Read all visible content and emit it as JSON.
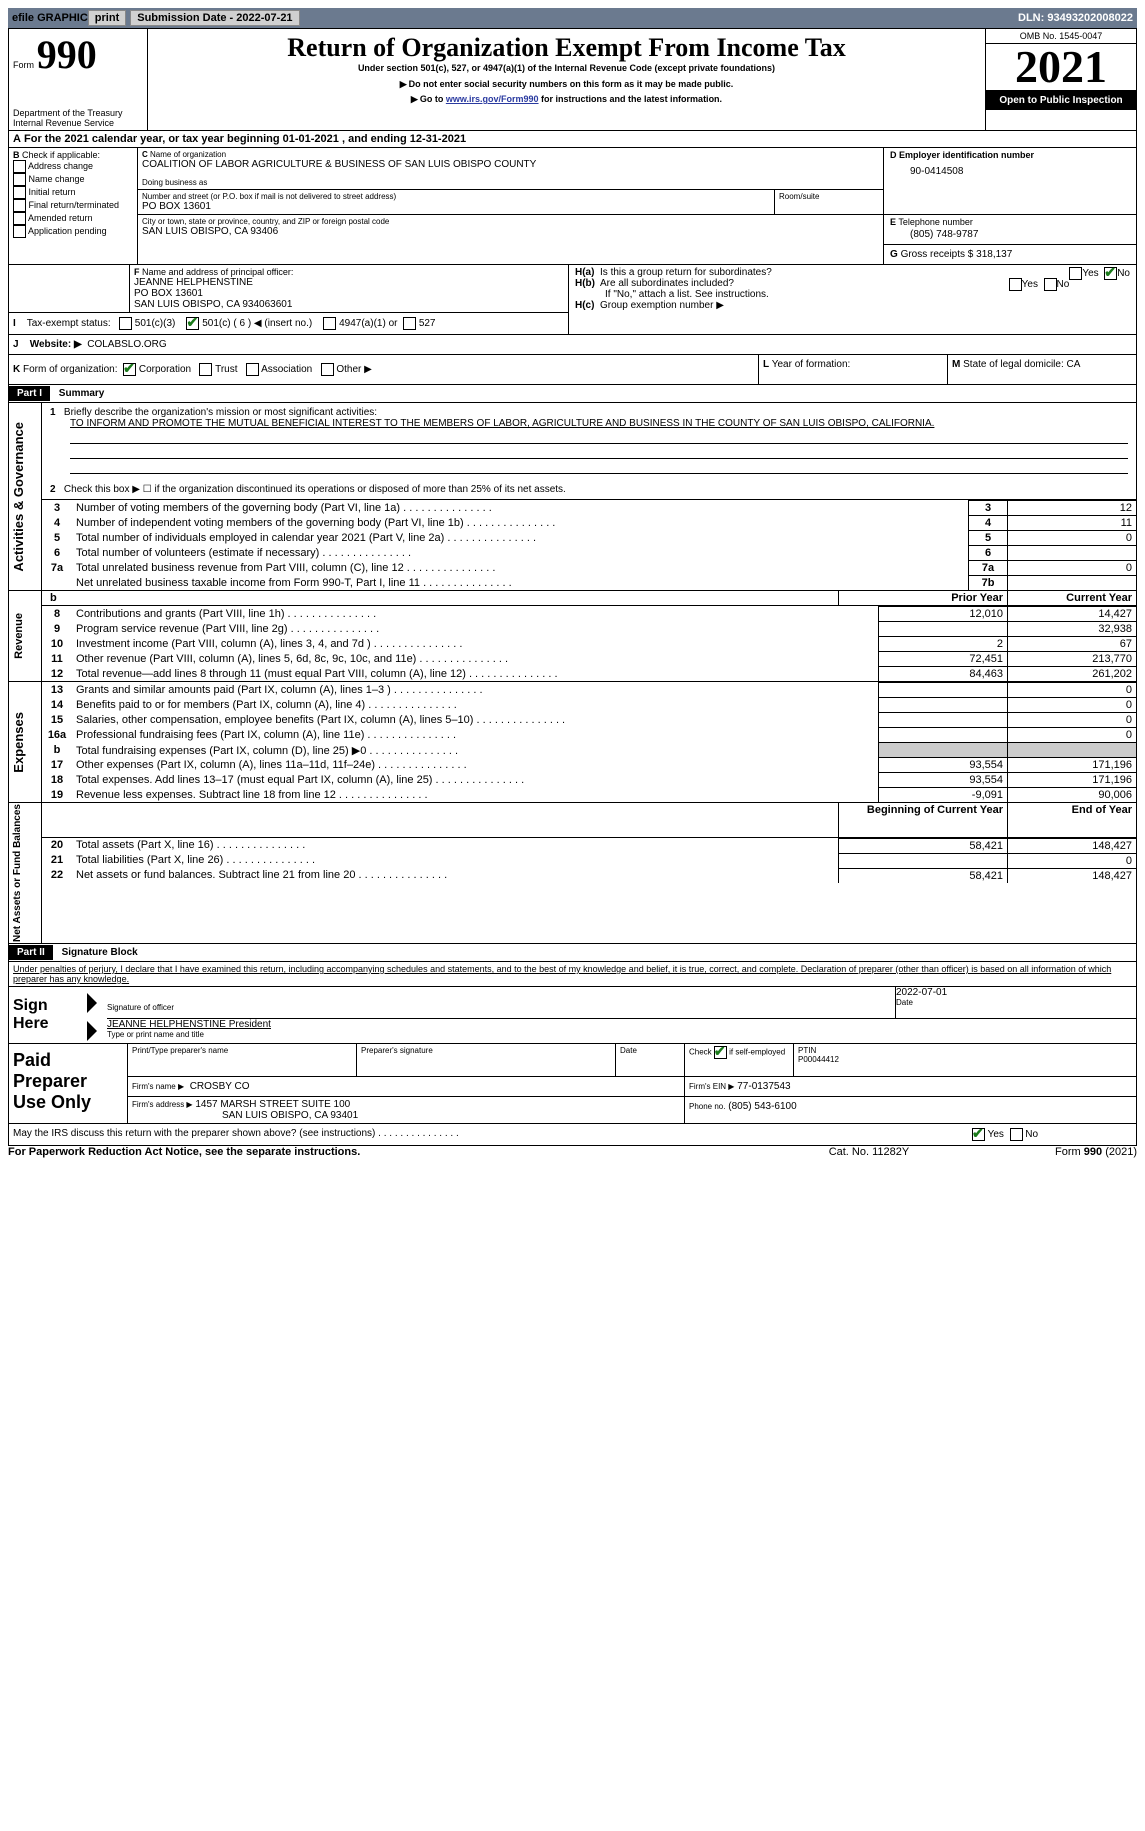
{
  "topbar": {
    "efile": "efile GRAPHIC",
    "print": "print",
    "subdate_lbl": "Submission Date - ",
    "subdate": "2022-07-21",
    "dln_lbl": "DLN: ",
    "dln": "93493202008022"
  },
  "header": {
    "form_word": "Form",
    "form_no": "990",
    "title": "Return of Organization Exempt From Income Tax",
    "subtitle": "Under section 501(c), 527, or 4947(a)(1) of the Internal Revenue Code (except private foundations)",
    "note1": "Do not enter social security numbers on this form as it may be made public.",
    "note2_pre": "Go to ",
    "note2_link": "www.irs.gov/Form990",
    "note2_post": " for instructions and the latest information.",
    "omb": "OMB No. 1545-0047",
    "year": "2021",
    "open_pub": "Open to Public Inspection",
    "dept": "Department of the Treasury",
    "irs": "Internal Revenue Service"
  },
  "a": {
    "line": "For the 2021 calendar year, or tax year beginning ",
    "begin": "01-01-2021",
    "mid": " , and ending ",
    "end": "12-31-2021"
  },
  "b": {
    "lbl": "Check if applicable:",
    "opts": [
      "Address change",
      "Name change",
      "Initial return",
      "Final return/terminated",
      "Amended return",
      "Application pending"
    ]
  },
  "c": {
    "lbl": "Name of organization",
    "name": "COALITION OF LABOR AGRICULTURE & BUSINESS OF SAN LUIS OBISPO COUNTY",
    "dba_lbl": "Doing business as",
    "addr_lbl": "Number and street (or P.O. box if mail is not delivered to street address)",
    "room_lbl": "Room/suite",
    "addr": "PO BOX 13601",
    "city_lbl": "City or town, state or province, country, and ZIP or foreign postal code",
    "city": "SAN LUIS OBISPO, CA  93406"
  },
  "d": {
    "lbl": "Employer identification number",
    "val": "90-0414508"
  },
  "e": {
    "lbl": "Telephone number",
    "val": "(805) 748-9787"
  },
  "g": {
    "lbl": "Gross receipts $",
    "val": "318,137"
  },
  "f": {
    "lbl": "Name and address of principal officer:",
    "name": "JEANNE HELPHENSTINE",
    "addr1": "PO BOX 13601",
    "addr2": "SAN LUIS OBISPO, CA  934063601"
  },
  "h": {
    "a_lbl": "Is this a group return for subordinates?",
    "a_yes": "Yes",
    "a_no": "No",
    "b_lbl": "Are all subordinates included?",
    "b_note": "If \"No,\" attach a list. See instructions.",
    "c_lbl": "Group exemption number ▶"
  },
  "i": {
    "lbl": "Tax-exempt status:",
    "o1": "501(c)(3)",
    "o2": "501(c) ( 6 ) ◀ (insert no.)",
    "o3": "4947(a)(1) or",
    "o4": "527"
  },
  "j": {
    "lbl": "Website: ▶",
    "val": "COLABSLO.ORG"
  },
  "k": {
    "lbl": "Form of organization:",
    "o1": "Corporation",
    "o2": "Trust",
    "o3": "Association",
    "o4": "Other ▶"
  },
  "l": {
    "lbl": "Year of formation:"
  },
  "m": {
    "lbl": "State of legal domicile:",
    "val": "CA"
  },
  "part1": {
    "hdr": "Part I",
    "title": "Summary"
  },
  "s1": {
    "lbl": "Briefly describe the organization's mission or most significant activities:",
    "txt": "TO INFORM AND PROMOTE THE MUTUAL BENEFICIAL INTEREST TO THE MEMBERS OF LABOR, AGRICULTURE AND BUSINESS IN THE COUNTY OF SAN LUIS OBISPO, CALIFORNIA."
  },
  "s2": "Check this box ▶ ☐ if the organization discontinued its operations or disposed of more than 25% of its net assets.",
  "rows_ag": [
    {
      "n": "3",
      "t": "Number of voting members of the governing body (Part VI, line 1a)",
      "l": "3",
      "v": "12"
    },
    {
      "n": "4",
      "t": "Number of independent voting members of the governing body (Part VI, line 1b)",
      "l": "4",
      "v": "11"
    },
    {
      "n": "5",
      "t": "Total number of individuals employed in calendar year 2021 (Part V, line 2a)",
      "l": "5",
      "v": "0"
    },
    {
      "n": "6",
      "t": "Total number of volunteers (estimate if necessary)",
      "l": "6",
      "v": ""
    },
    {
      "n": "7a",
      "t": "Total unrelated business revenue from Part VIII, column (C), line 12",
      "l": "7a",
      "v": "0"
    },
    {
      "n": "",
      "t": "Net unrelated business taxable income from Form 990-T, Part I, line 11",
      "l": "7b",
      "v": ""
    }
  ],
  "py_hdr": "Prior Year",
  "cy_hdr": "Current Year",
  "rows_rev": [
    {
      "n": "8",
      "t": "Contributions and grants (Part VIII, line 1h)",
      "py": "12,010",
      "cy": "14,427"
    },
    {
      "n": "9",
      "t": "Program service revenue (Part VIII, line 2g)",
      "py": "",
      "cy": "32,938"
    },
    {
      "n": "10",
      "t": "Investment income (Part VIII, column (A), lines 3, 4, and 7d )",
      "py": "2",
      "cy": "67"
    },
    {
      "n": "11",
      "t": "Other revenue (Part VIII, column (A), lines 5, 6d, 8c, 9c, 10c, and 11e)",
      "py": "72,451",
      "cy": "213,770"
    },
    {
      "n": "12",
      "t": "Total revenue—add lines 8 through 11 (must equal Part VIII, column (A), line 12)",
      "py": "84,463",
      "cy": "261,202"
    }
  ],
  "rows_exp": [
    {
      "n": "13",
      "t": "Grants and similar amounts paid (Part IX, column (A), lines 1–3 )",
      "py": "",
      "cy": "0"
    },
    {
      "n": "14",
      "t": "Benefits paid to or for members (Part IX, column (A), line 4)",
      "py": "",
      "cy": "0"
    },
    {
      "n": "15",
      "t": "Salaries, other compensation, employee benefits (Part IX, column (A), lines 5–10)",
      "py": "",
      "cy": "0"
    },
    {
      "n": "16a",
      "t": "Professional fundraising fees (Part IX, column (A), line 11e)",
      "py": "",
      "cy": "0"
    },
    {
      "n": "b",
      "t": "Total fundraising expenses (Part IX, column (D), line 25) ▶0",
      "py": "shade",
      "cy": "shade"
    },
    {
      "n": "17",
      "t": "Other expenses (Part IX, column (A), lines 11a–11d, 11f–24e)",
      "py": "93,554",
      "cy": "171,196"
    },
    {
      "n": "18",
      "t": "Total expenses. Add lines 13–17 (must equal Part IX, column (A), line 25)",
      "py": "93,554",
      "cy": "171,196"
    },
    {
      "n": "19",
      "t": "Revenue less expenses. Subtract line 18 from line 12",
      "py": "-9,091",
      "cy": "90,006"
    }
  ],
  "boy_hdr": "Beginning of Current Year",
  "eoy_hdr": "End of Year",
  "rows_na": [
    {
      "n": "20",
      "t": "Total assets (Part X, line 16)",
      "b": "58,421",
      "e": "148,427"
    },
    {
      "n": "21",
      "t": "Total liabilities (Part X, line 26)",
      "b": "",
      "e": "0"
    },
    {
      "n": "22",
      "t": "Net assets or fund balances. Subtract line 21 from line 20",
      "b": "58,421",
      "e": "148,427"
    }
  ],
  "part2": {
    "hdr": "Part II",
    "title": "Signature Block"
  },
  "penalty": "Under penalties of perjury, I declare that I have examined this return, including accompanying schedules and statements, and to the best of my knowledge and belief, it is true, correct, and complete. Declaration of preparer (other than officer) is based on all information of which preparer has any knowledge.",
  "sign": {
    "here": "Sign Here",
    "sig_lbl": "Signature of officer",
    "date_lbl": "Date",
    "date": "2022-07-01",
    "name": "JEANNE HELPHENSTINE  President",
    "name_lbl": "Type or print name and title"
  },
  "paid": {
    "hdr": "Paid Preparer Use Only",
    "c1": "Print/Type preparer's name",
    "c2": "Preparer's signature",
    "c3": "Date",
    "c4a": "Check",
    "c4b": "if self-employed",
    "c5": "PTIN",
    "ptin": "P00044412",
    "firm_lbl": "Firm's name   ▶",
    "firm": "CROSBY CO",
    "ein_lbl": "Firm's EIN ▶",
    "ein": "77-0137543",
    "addr_lbl": "Firm's address ▶",
    "addr1": "1457 MARSH STREET SUITE 100",
    "addr2": "SAN LUIS OBISPO, CA  93401",
    "phone_lbl": "Phone no.",
    "phone": "(805) 543-6100"
  },
  "may": {
    "q": "May the IRS discuss this return with the preparer shown above? (see instructions)",
    "yes": "Yes",
    "no": "No"
  },
  "footer": {
    "pra": "For Paperwork Reduction Act Notice, see the separate instructions.",
    "cat": "Cat. No. 11282Y",
    "form": "Form 990 (2021)"
  }
}
